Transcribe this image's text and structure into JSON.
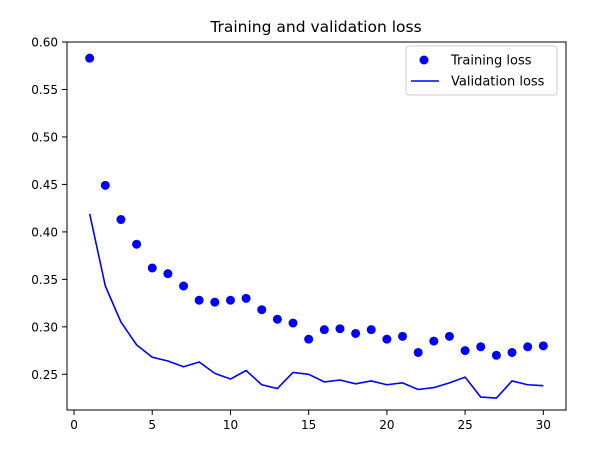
{
  "chart_data": {
    "type": "scatter",
    "title": "Training and validation loss",
    "xlabel": "",
    "ylabel": "",
    "xlim": [
      -0.45,
      31.45
    ],
    "ylim": [
      0.2124,
      0.6
    ],
    "xticks": [
      0,
      5,
      10,
      15,
      20,
      25,
      30
    ],
    "xtick_labels": [
      "0",
      "5",
      "10",
      "15",
      "20",
      "25",
      "30"
    ],
    "yticks": [
      0.25,
      0.3,
      0.35,
      0.4,
      0.45,
      0.5,
      0.55,
      0.6
    ],
    "ytick_labels": [
      "0.25",
      "0.30",
      "0.35",
      "0.40",
      "0.45",
      "0.50",
      "0.55",
      "0.60"
    ],
    "grid": false,
    "legend_position": "top-right",
    "x": [
      1,
      2,
      3,
      4,
      5,
      6,
      7,
      8,
      9,
      10,
      11,
      12,
      13,
      14,
      15,
      16,
      17,
      18,
      19,
      20,
      21,
      22,
      23,
      24,
      25,
      26,
      27,
      28,
      29,
      30
    ],
    "series": [
      {
        "name": "Training loss",
        "kind": "points",
        "color": "#0000ff",
        "values": [
          0.583,
          0.449,
          0.413,
          0.387,
          0.362,
          0.356,
          0.343,
          0.328,
          0.326,
          0.328,
          0.33,
          0.318,
          0.308,
          0.304,
          0.287,
          0.297,
          0.298,
          0.293,
          0.297,
          0.287,
          0.29,
          0.273,
          0.285,
          0.29,
          0.275,
          0.279,
          0.27,
          0.273,
          0.279,
          0.28
        ]
      },
      {
        "name": "Validation loss",
        "kind": "line",
        "color": "#0000ff",
        "values": [
          0.419,
          0.343,
          0.305,
          0.281,
          0.268,
          0.264,
          0.258,
          0.263,
          0.251,
          0.245,
          0.254,
          0.239,
          0.235,
          0.252,
          0.25,
          0.242,
          0.244,
          0.24,
          0.243,
          0.239,
          0.241,
          0.234,
          0.236,
          0.241,
          0.247,
          0.226,
          0.225,
          0.243,
          0.239,
          0.238
        ]
      }
    ]
  }
}
